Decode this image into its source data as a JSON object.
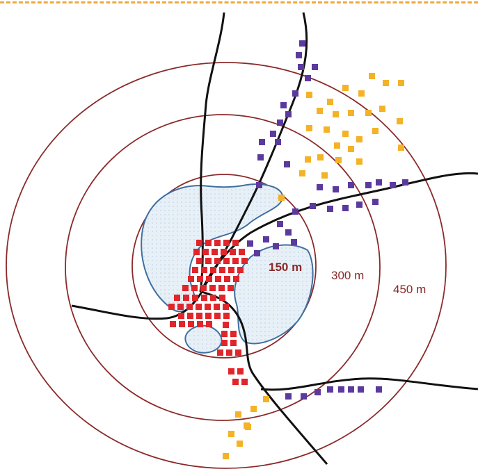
{
  "diagram": {
    "colors": {
      "ring": "#8b2a2a",
      "road": "#111111",
      "water_fill": "#e8f0f7",
      "water_edge": "#3f6fa0",
      "center_blocks": "#e0252b",
      "mid_blocks": "#5b3a9e",
      "outer_blocks": "#f4b227",
      "top_rule": "#f0a93c"
    },
    "rings": [
      {
        "id": "inner",
        "label": "150 m"
      },
      {
        "id": "middle",
        "label": "300 m"
      },
      {
        "id": "outer",
        "label": "450 m"
      }
    ],
    "legend_note": ""
  }
}
